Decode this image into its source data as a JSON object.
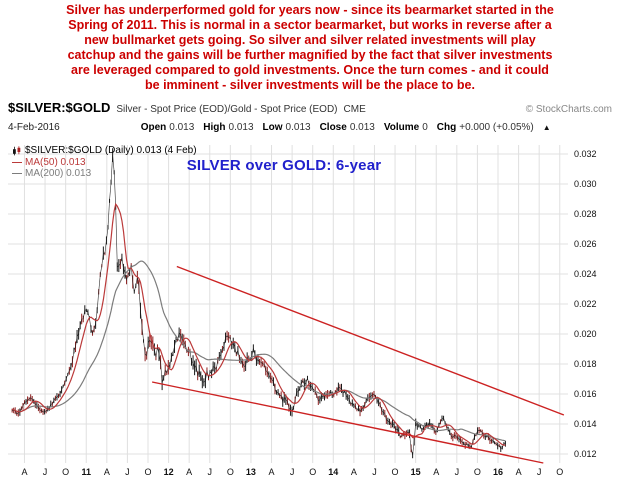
{
  "annotation": {
    "lines": [
      "Silver has underperformed gold for years now - since its bearmarket started in the",
      "Spring of 2011. This is normal in a sector bearmarket, but works in reverse after a",
      "new bullmarket gets going. So silver and silver related investments will play",
      "catchup and the gains will be further magnified by the fact that silver investments",
      "are leveraged compared to gold investments. Once the turn comes - and it could",
      "be imminent - silver investments will be the place to be."
    ],
    "color": "#cc0000"
  },
  "header": {
    "symbol": "$SILVER:$GOLD",
    "description": "Silver - Spot Price (EOD)/Gold - Spot Price (EOD)",
    "exchange": "CME",
    "copyright": "© StockCharts.com",
    "date": "4-Feb-2016",
    "quote": [
      {
        "label": "Open",
        "value": "0.013"
      },
      {
        "label": "High",
        "value": "0.013"
      },
      {
        "label": "Low",
        "value": "0.013"
      },
      {
        "label": "Close",
        "value": "0.013"
      },
      {
        "label": "Volume",
        "value": "0"
      },
      {
        "label": "Chg",
        "value": "+0.000 (+0.05%)"
      }
    ],
    "direction_arrow": "▲"
  },
  "legend": {
    "main": "$SILVER:$GOLD (Daily) 0.013 (4 Feb)",
    "ma50": "MA(50) 0.013",
    "ma200": "MA(200) 0.013",
    "swatch": "—"
  },
  "chart_annotation": "SILVER over GOLD: 6-year",
  "chart_data": {
    "type": "line",
    "title": "SILVER over GOLD: 6-year",
    "symbol": "$SILVER:$GOLD",
    "timeframe": "Daily",
    "x_range": [
      2010.05,
      2016.85
    ],
    "y_range": [
      0.0114,
      0.0326
    ],
    "y_ticks": [
      0.012,
      0.014,
      0.016,
      0.018,
      0.02,
      0.022,
      0.024,
      0.026,
      0.028,
      0.03,
      0.032
    ],
    "x_ticks": [
      {
        "t": 2010.25,
        "label": "A"
      },
      {
        "t": 2010.5,
        "label": "J"
      },
      {
        "t": 2010.75,
        "label": "O"
      },
      {
        "t": 2011.0,
        "label": "11",
        "bold": true
      },
      {
        "t": 2011.25,
        "label": "A"
      },
      {
        "t": 2011.5,
        "label": "J"
      },
      {
        "t": 2011.75,
        "label": "O"
      },
      {
        "t": 2012.0,
        "label": "12",
        "bold": true
      },
      {
        "t": 2012.25,
        "label": "A"
      },
      {
        "t": 2012.5,
        "label": "J"
      },
      {
        "t": 2012.75,
        "label": "O"
      },
      {
        "t": 2013.0,
        "label": "13",
        "bold": true
      },
      {
        "t": 2013.25,
        "label": "A"
      },
      {
        "t": 2013.5,
        "label": "J"
      },
      {
        "t": 2013.75,
        "label": "O"
      },
      {
        "t": 2014.0,
        "label": "14",
        "bold": true
      },
      {
        "t": 2014.25,
        "label": "A"
      },
      {
        "t": 2014.5,
        "label": "J"
      },
      {
        "t": 2014.75,
        "label": "O"
      },
      {
        "t": 2015.0,
        "label": "15",
        "bold": true
      },
      {
        "t": 2015.25,
        "label": "A"
      },
      {
        "t": 2015.5,
        "label": "J"
      },
      {
        "t": 2015.75,
        "label": "O"
      },
      {
        "t": 2016.0,
        "label": "16",
        "bold": true
      },
      {
        "t": 2016.25,
        "label": "A"
      },
      {
        "t": 2016.5,
        "label": "J"
      },
      {
        "t": 2016.75,
        "label": "O"
      }
    ],
    "series": [
      {
        "name": "$SILVER:$GOLD (Daily)",
        "color": "#1a1a1a",
        "alt_color": "#8c1f1f",
        "points": [
          [
            2010.1,
            0.015
          ],
          [
            2010.17,
            0.01462
          ],
          [
            2010.25,
            0.01535
          ],
          [
            2010.33,
            0.01575
          ],
          [
            2010.42,
            0.0151
          ],
          [
            2010.5,
            0.0148
          ],
          [
            2010.58,
            0.0153
          ],
          [
            2010.67,
            0.016
          ],
          [
            2010.75,
            0.0168
          ],
          [
            2010.83,
            0.0183
          ],
          [
            2010.92,
            0.0205
          ],
          [
            2011.0,
            0.0218
          ],
          [
            2011.04,
            0.021
          ],
          [
            2011.08,
            0.0199
          ],
          [
            2011.13,
            0.0212
          ],
          [
            2011.17,
            0.0238
          ],
          [
            2011.21,
            0.0252
          ],
          [
            2011.25,
            0.0262
          ],
          [
            2011.29,
            0.0291
          ],
          [
            2011.32,
            0.0319
          ],
          [
            2011.35,
            0.0305
          ],
          [
            2011.38,
            0.0238
          ],
          [
            2011.42,
            0.0252
          ],
          [
            2011.46,
            0.0242
          ],
          [
            2011.5,
            0.0238
          ],
          [
            2011.54,
            0.0247
          ],
          [
            2011.58,
            0.023
          ],
          [
            2011.63,
            0.0238
          ],
          [
            2011.67,
            0.021
          ],
          [
            2011.71,
            0.0183
          ],
          [
            2011.75,
            0.0192
          ],
          [
            2011.79,
            0.0197
          ],
          [
            2011.83,
            0.0186
          ],
          [
            2011.88,
            0.019
          ],
          [
            2011.92,
            0.017
          ],
          [
            2011.96,
            0.0173
          ],
          [
            2012.0,
            0.0177
          ],
          [
            2012.08,
            0.0194
          ],
          [
            2012.13,
            0.0203
          ],
          [
            2012.17,
            0.0197
          ],
          [
            2012.25,
            0.0189
          ],
          [
            2012.33,
            0.0177
          ],
          [
            2012.42,
            0.017
          ],
          [
            2012.5,
            0.0174
          ],
          [
            2012.58,
            0.0178
          ],
          [
            2012.67,
            0.0192
          ],
          [
            2012.71,
            0.0199
          ],
          [
            2012.75,
            0.0196
          ],
          [
            2012.83,
            0.0188
          ],
          [
            2012.92,
            0.0179
          ],
          [
            2013.0,
            0.0186
          ],
          [
            2013.04,
            0.019
          ],
          [
            2013.08,
            0.0181
          ],
          [
            2013.17,
            0.0179
          ],
          [
            2013.25,
            0.017
          ],
          [
            2013.33,
            0.0159
          ],
          [
            2013.42,
            0.0156
          ],
          [
            2013.5,
            0.015
          ],
          [
            2013.58,
            0.0163
          ],
          [
            2013.67,
            0.017
          ],
          [
            2013.75,
            0.0164
          ],
          [
            2013.83,
            0.0156
          ],
          [
            2013.92,
            0.0161
          ],
          [
            2014.0,
            0.016
          ],
          [
            2014.08,
            0.0165
          ],
          [
            2014.17,
            0.0158
          ],
          [
            2014.25,
            0.0151
          ],
          [
            2014.33,
            0.0149
          ],
          [
            2014.42,
            0.0157
          ],
          [
            2014.5,
            0.016
          ],
          [
            2014.58,
            0.015
          ],
          [
            2014.67,
            0.0141
          ],
          [
            2014.75,
            0.0138
          ],
          [
            2014.83,
            0.0131
          ],
          [
            2014.92,
            0.0137
          ],
          [
            2014.96,
            0.0118
          ],
          [
            2015.0,
            0.014
          ],
          [
            2015.08,
            0.0137
          ],
          [
            2015.17,
            0.0141
          ],
          [
            2015.25,
            0.0134
          ],
          [
            2015.33,
            0.0144
          ],
          [
            2015.42,
            0.0133
          ],
          [
            2015.5,
            0.0131
          ],
          [
            2015.58,
            0.0128
          ],
          [
            2015.67,
            0.0124
          ],
          [
            2015.75,
            0.0136
          ],
          [
            2015.83,
            0.0133
          ],
          [
            2015.92,
            0.0129
          ],
          [
            2016.0,
            0.0126
          ],
          [
            2016.04,
            0.0123
          ],
          [
            2016.09,
            0.0128
          ]
        ]
      }
    ],
    "overlays": [
      {
        "name": "MA(50)",
        "window_days": 50,
        "color": "#bb3a3a",
        "value": 0.013
      },
      {
        "name": "MA(200)",
        "window_days": 200,
        "color": "#7c7c7c",
        "value": 0.013
      }
    ],
    "trendlines": [
      {
        "name": "channel-top",
        "x1": 2012.1,
        "y1": 0.0245,
        "x2": 2016.8,
        "y2": 0.0146,
        "color": "#cc2222"
      },
      {
        "name": "channel-bottom",
        "x1": 2011.8,
        "y1": 0.0168,
        "x2": 2016.55,
        "y2": 0.0114,
        "color": "#cc2222"
      }
    ],
    "last": {
      "value": 0.013,
      "date_label": "4 Feb"
    },
    "grid": true,
    "legend_position": "top-left",
    "ylabel": "",
    "xlabel": ""
  }
}
